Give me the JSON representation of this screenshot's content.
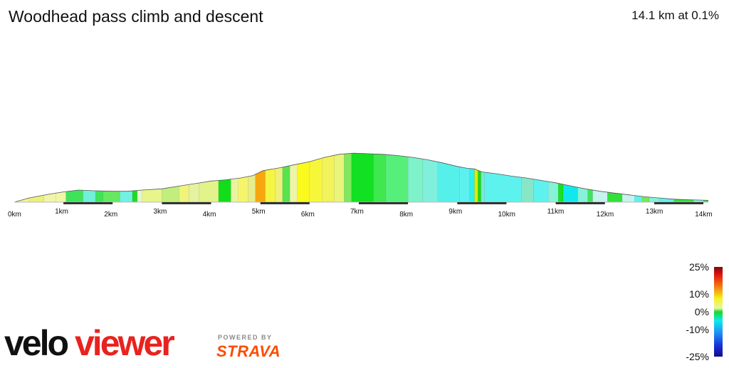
{
  "header": {
    "title": "Woodhead pass climb and descent",
    "summary": "14.1 km at 0.1%"
  },
  "chart_data": {
    "type": "area",
    "title": "Woodhead pass climb and descent",
    "xlabel": "",
    "ylabel": "",
    "x_unit": "km",
    "xlim": [
      0,
      14.1
    ],
    "ylim_relative": [
      0,
      100
    ],
    "ticks": [
      "0km",
      "1km",
      "2km",
      "3km",
      "4km",
      "5km",
      "6km",
      "7km",
      "8km",
      "9km",
      "10km",
      "11km",
      "12km",
      "13km",
      "14km"
    ],
    "profile": {
      "x": [
        0,
        0.3,
        0.7,
        1.0,
        1.3,
        1.6,
        2.0,
        2.3,
        2.6,
        3.0,
        3.3,
        3.7,
        4.0,
        4.3,
        4.6,
        4.85,
        5.05,
        5.4,
        5.7,
        6.0,
        6.3,
        6.6,
        6.9,
        7.2,
        7.5,
        7.8,
        8.1,
        8.4,
        8.7,
        9.0,
        9.2,
        9.35,
        9.5,
        9.8,
        10.1,
        10.4,
        10.7,
        11.0,
        11.3,
        11.6,
        11.9,
        12.2,
        12.5,
        12.8,
        13.1,
        13.4,
        13.7,
        14.1
      ],
      "elevation_rel": [
        0,
        7,
        13,
        17,
        20,
        19,
        18,
        18,
        20,
        22,
        26,
        31,
        35,
        37,
        40,
        44,
        52,
        57,
        62,
        67,
        74,
        79,
        81,
        80,
        79,
        77,
        74,
        70,
        65,
        59,
        56,
        55,
        50,
        47,
        43,
        40,
        36,
        32,
        27,
        22,
        18,
        15,
        12,
        9,
        7,
        5,
        4,
        3
      ]
    },
    "segments": [
      {
        "from": 0.0,
        "to": 0.3,
        "color": "#f4f19a"
      },
      {
        "from": 0.3,
        "to": 0.6,
        "color": "#ebf07a"
      },
      {
        "from": 0.6,
        "to": 0.85,
        "color": "#f2f5a8"
      },
      {
        "from": 0.85,
        "to": 1.05,
        "color": "#f2f5a8"
      },
      {
        "from": 1.05,
        "to": 1.4,
        "color": "#3ee35a"
      },
      {
        "from": 1.4,
        "to": 1.65,
        "color": "#6ff0d8"
      },
      {
        "from": 1.65,
        "to": 1.8,
        "color": "#3ee35a"
      },
      {
        "from": 1.8,
        "to": 2.15,
        "color": "#66e860"
      },
      {
        "from": 2.15,
        "to": 2.4,
        "color": "#72f0e4"
      },
      {
        "from": 2.4,
        "to": 2.5,
        "color": "#1edb22"
      },
      {
        "from": 2.5,
        "to": 2.6,
        "color": "#e8f5cf"
      },
      {
        "from": 2.6,
        "to": 3.0,
        "color": "#e8f58a"
      },
      {
        "from": 3.0,
        "to": 3.35,
        "color": "#c1ee7c"
      },
      {
        "from": 3.35,
        "to": 3.55,
        "color": "#f0f47a"
      },
      {
        "from": 3.55,
        "to": 3.75,
        "color": "#e4f3a2"
      },
      {
        "from": 3.75,
        "to": 4.15,
        "color": "#e2f38a"
      },
      {
        "from": 4.15,
        "to": 4.4,
        "color": "#12dd1a"
      },
      {
        "from": 4.4,
        "to": 4.55,
        "color": "#ecf3a0"
      },
      {
        "from": 4.55,
        "to": 4.75,
        "color": "#f5f56a"
      },
      {
        "from": 4.75,
        "to": 4.9,
        "color": "#e7ed8a"
      },
      {
        "from": 4.9,
        "to": 5.1,
        "color": "#f7a70e"
      },
      {
        "from": 5.1,
        "to": 5.3,
        "color": "#f5f544"
      },
      {
        "from": 5.3,
        "to": 5.45,
        "color": "#eef07a"
      },
      {
        "from": 5.45,
        "to": 5.6,
        "color": "#56e34e"
      },
      {
        "from": 5.6,
        "to": 5.75,
        "color": "#eef5a6"
      },
      {
        "from": 5.75,
        "to": 6.0,
        "color": "#fafa1e"
      },
      {
        "from": 6.0,
        "to": 6.25,
        "color": "#f7f73a"
      },
      {
        "from": 6.25,
        "to": 6.5,
        "color": "#f2f25a"
      },
      {
        "from": 6.5,
        "to": 6.7,
        "color": "#e8f57a"
      },
      {
        "from": 6.7,
        "to": 6.85,
        "color": "#7ee85e"
      },
      {
        "from": 6.85,
        "to": 7.3,
        "color": "#12e022"
      },
      {
        "from": 7.3,
        "to": 7.55,
        "color": "#3fe84e"
      },
      {
        "from": 7.55,
        "to": 8.0,
        "color": "#56ef7a"
      },
      {
        "from": 8.0,
        "to": 8.3,
        "color": "#7ef2c8"
      },
      {
        "from": 8.3,
        "to": 8.6,
        "color": "#80f0dc"
      },
      {
        "from": 8.6,
        "to": 9.05,
        "color": "#56f0ea"
      },
      {
        "from": 9.05,
        "to": 9.25,
        "color": "#5cf0ee"
      },
      {
        "from": 9.25,
        "to": 9.35,
        "color": "#2ff1ec"
      },
      {
        "from": 9.35,
        "to": 9.42,
        "color": "#e6e800"
      },
      {
        "from": 9.42,
        "to": 9.48,
        "color": "#11dd11"
      },
      {
        "from": 9.48,
        "to": 9.55,
        "color": "#7ee6d2"
      },
      {
        "from": 9.55,
        "to": 10.3,
        "color": "#5ef2ee"
      },
      {
        "from": 10.3,
        "to": 10.55,
        "color": "#86e6c8"
      },
      {
        "from": 10.55,
        "to": 10.85,
        "color": "#5ef2ee"
      },
      {
        "from": 10.85,
        "to": 11.05,
        "color": "#86f2d8"
      },
      {
        "from": 11.05,
        "to": 11.15,
        "color": "#19e026"
      },
      {
        "from": 11.15,
        "to": 11.45,
        "color": "#10e8ee"
      },
      {
        "from": 11.45,
        "to": 11.65,
        "color": "#86f2d8"
      },
      {
        "from": 11.65,
        "to": 11.75,
        "color": "#3ee35a"
      },
      {
        "from": 11.75,
        "to": 12.05,
        "color": "#c7f2ee"
      },
      {
        "from": 12.05,
        "to": 12.35,
        "color": "#33e03a"
      },
      {
        "from": 12.35,
        "to": 12.6,
        "color": "#c7f2ee"
      },
      {
        "from": 12.6,
        "to": 12.75,
        "color": "#5ef2ee"
      },
      {
        "from": 12.75,
        "to": 12.9,
        "color": "#74e85e"
      },
      {
        "from": 12.9,
        "to": 13.1,
        "color": "#86f2d8"
      },
      {
        "from": 13.1,
        "to": 13.4,
        "color": "#5ef2ee"
      },
      {
        "from": 13.4,
        "to": 13.8,
        "color": "#33e03a"
      },
      {
        "from": 13.8,
        "to": 14.0,
        "color": "#86f2d8"
      },
      {
        "from": 14.0,
        "to": 14.1,
        "color": "#33e03a"
      }
    ],
    "km_bands": [
      [
        1,
        2
      ],
      [
        3,
        4
      ],
      [
        5,
        6
      ],
      [
        7,
        8
      ],
      [
        9,
        10
      ],
      [
        11,
        12
      ],
      [
        13,
        14
      ]
    ],
    "legend": {
      "labels": [
        "25%",
        "10%",
        "0%",
        "-10%",
        "-25%"
      ],
      "values": [
        25,
        10,
        0,
        -10,
        -25
      ],
      "stops": [
        {
          "offset": 0,
          "color": "#7a0a0a"
        },
        {
          "offset": 0.08,
          "color": "#e01010"
        },
        {
          "offset": 0.2,
          "color": "#f26c0c"
        },
        {
          "offset": 0.35,
          "color": "#f6f21c"
        },
        {
          "offset": 0.46,
          "color": "#e8f5a6"
        },
        {
          "offset": 0.5,
          "color": "#18d82a"
        },
        {
          "offset": 0.6,
          "color": "#10e8ee"
        },
        {
          "offset": 0.74,
          "color": "#1e8ef4"
        },
        {
          "offset": 0.88,
          "color": "#1a30d8"
        },
        {
          "offset": 1,
          "color": "#150b8a"
        }
      ]
    }
  },
  "branding": {
    "logo_velo": "velo",
    "logo_viewer": "viewer",
    "powered_by": "POWERED BY",
    "strava": "STRAVA",
    "logo_color_dark": "#111111",
    "logo_color_accent": "#e8231f"
  }
}
